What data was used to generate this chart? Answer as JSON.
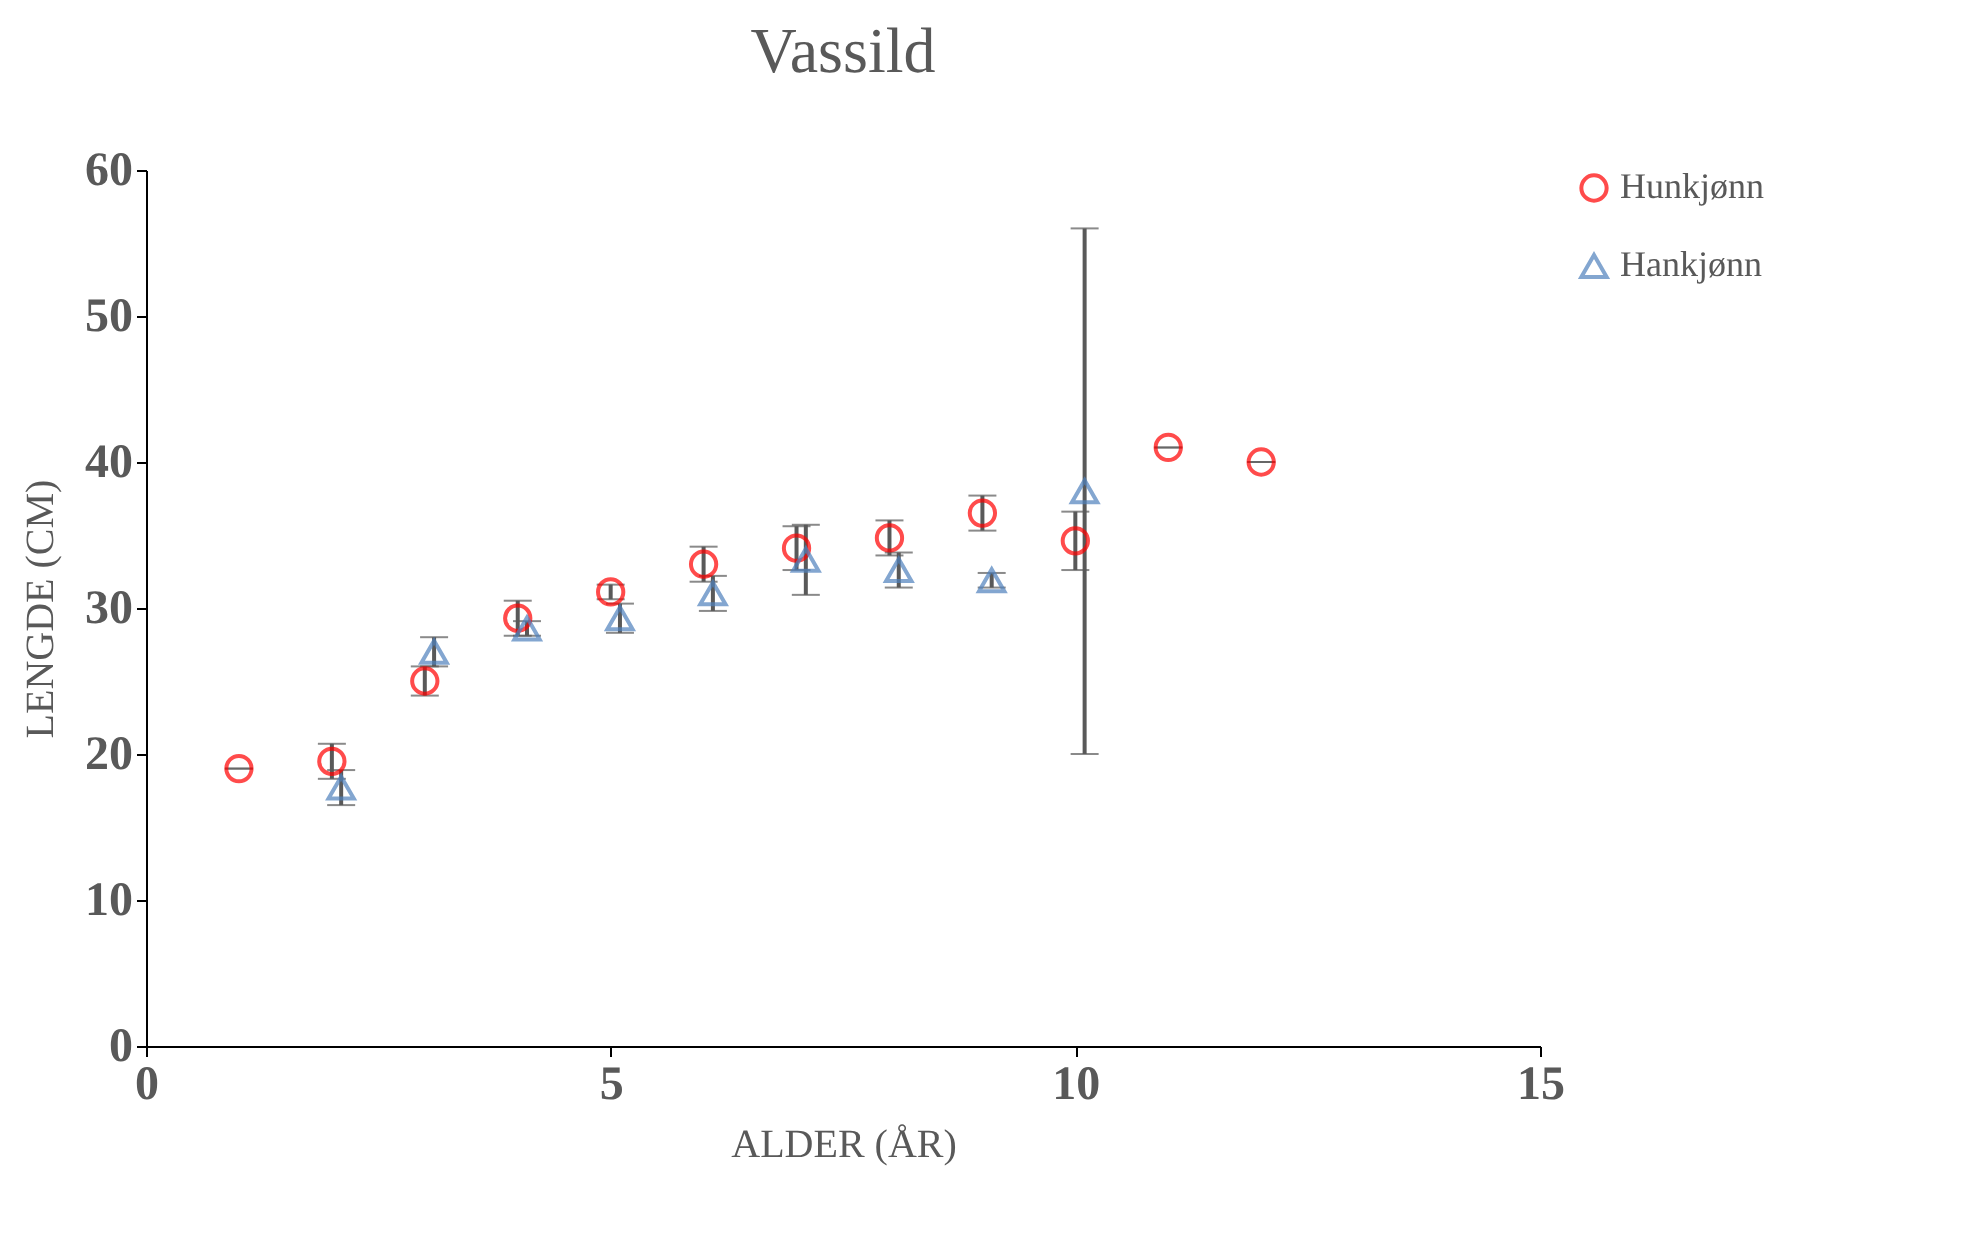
{
  "chart_data": {
    "type": "scatter",
    "title": "Vassild",
    "xlabel": "ALDER (ÅR)",
    "ylabel": "LENGDE (CM)",
    "xlim": [
      0,
      15
    ],
    "xticks": [
      0,
      5,
      10,
      15
    ],
    "ylim": [
      0,
      60
    ],
    "yticks": [
      0,
      10,
      20,
      30,
      40,
      50,
      60
    ],
    "grid": false,
    "legend": "right",
    "series": [
      {
        "name": "Hunkjønn",
        "color": "#ff0000",
        "marker": "circle",
        "x": [
          1,
          2,
          3,
          4,
          5,
          6,
          7,
          8,
          9,
          10,
          11,
          12
        ],
        "values": [
          19,
          19.5,
          25,
          29.3,
          31.1,
          33,
          34.1,
          34.8,
          36.5,
          34.6,
          41,
          40
        ],
        "errors": [
          0,
          1.2,
          1,
          1.2,
          0.5,
          1.2,
          1.5,
          1.2,
          1.2,
          2,
          0,
          0
        ]
      },
      {
        "name": "Hankjønn",
        "color": "#4f81bd",
        "marker": "triangle",
        "x": [
          2.1,
          3.1,
          4.1,
          5.1,
          6.1,
          7.1,
          8.1,
          9.1,
          10.1
        ],
        "values": [
          17.7,
          27,
          28.6,
          29.3,
          31,
          33.3,
          32.6,
          31.9,
          38
        ],
        "errors": [
          1.2,
          1,
          0.5,
          1,
          1.2,
          2.4,
          1.2,
          0.5,
          18
        ]
      }
    ]
  }
}
